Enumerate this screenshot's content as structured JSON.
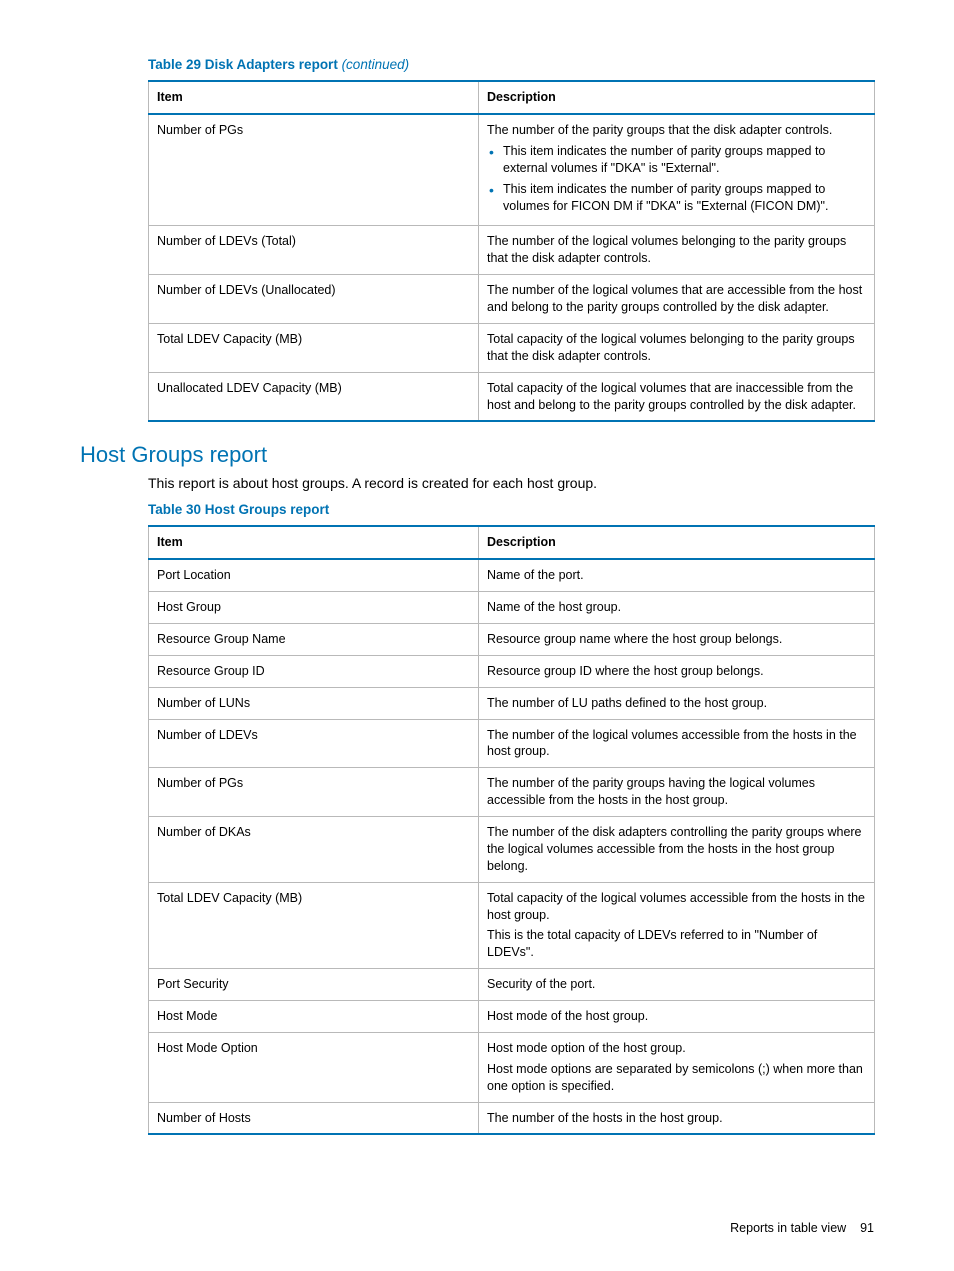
{
  "colors": {
    "accent": "#0073b3",
    "border": "#b9b9b9",
    "text": "#000000",
    "background": "#ffffff"
  },
  "table29": {
    "title_prefix": "Table 29 Disk Adapters report ",
    "title_suffix": "(continued)",
    "headers": {
      "col1": "Item",
      "col2": "Description"
    },
    "rows": [
      {
        "item": "Number of PGs",
        "lead": "The number of the parity groups that the disk adapter controls.",
        "bullets": [
          "This item indicates the number of parity groups mapped to external volumes if \"DKA\" is \"External\".",
          "This item indicates the number of parity groups mapped to volumes for FICON DM if \"DKA\" is \"External (FICON DM)\"."
        ]
      },
      {
        "item": "Number of LDEVs (Total)",
        "paras": [
          "The number of the logical volumes belonging to the parity groups that the disk adapter controls."
        ]
      },
      {
        "item": "Number of LDEVs (Unallocated)",
        "paras": [
          "The number of the logical volumes that are accessible from the host and belong to the parity groups controlled by the disk adapter."
        ]
      },
      {
        "item": "Total LDEV Capacity (MB)",
        "paras": [
          "Total capacity of the logical volumes belonging to the parity groups that the disk adapter controls."
        ]
      },
      {
        "item": "Unallocated LDEV Capacity (MB)",
        "paras": [
          "Total capacity of the logical volumes that are inaccessible from the host and belong to the parity groups controlled by the disk adapter."
        ]
      }
    ]
  },
  "section": {
    "title": "Host Groups report",
    "intro": "This report is about host groups. A record is created for each host group."
  },
  "table30": {
    "title": "Table 30 Host Groups report",
    "headers": {
      "col1": "Item",
      "col2": "Description"
    },
    "rows": [
      {
        "item": "Port Location",
        "paras": [
          "Name of the port."
        ]
      },
      {
        "item": "Host Group",
        "paras": [
          "Name of the host group."
        ]
      },
      {
        "item": "Resource Group Name",
        "paras": [
          "Resource group name where the host group belongs."
        ]
      },
      {
        "item": "Resource Group ID",
        "paras": [
          "Resource group ID where the host group belongs."
        ]
      },
      {
        "item": "Number of LUNs",
        "paras": [
          "The number of LU paths defined to the host group."
        ]
      },
      {
        "item": "Number of LDEVs",
        "paras": [
          "The number of the logical volumes accessible from the hosts in the host group."
        ]
      },
      {
        "item": "Number of PGs",
        "paras": [
          "The number of the parity groups having the logical volumes accessible from the hosts in the host group."
        ]
      },
      {
        "item": "Number of DKAs",
        "paras": [
          "The number of the disk adapters controlling the parity groups where the logical volumes accessible from the hosts in the host group belong."
        ]
      },
      {
        "item": "Total LDEV Capacity (MB)",
        "paras": [
          "Total capacity of the logical volumes accessible from the hosts in the host group.",
          "This is the total capacity of LDEVs referred to in \"Number of LDEVs\"."
        ]
      },
      {
        "item": "Port Security",
        "paras": [
          "Security of the port."
        ]
      },
      {
        "item": "Host Mode",
        "paras": [
          "Host mode of the host group."
        ]
      },
      {
        "item": "Host Mode Option",
        "paras": [
          "Host mode option of the host group.",
          "Host mode options are separated by semicolons (;) when more than one option is specified."
        ]
      },
      {
        "item": "Number of Hosts",
        "paras": [
          "The number of the hosts in the host group."
        ]
      }
    ]
  },
  "footer": {
    "text": "Reports in table view",
    "page": "91"
  }
}
